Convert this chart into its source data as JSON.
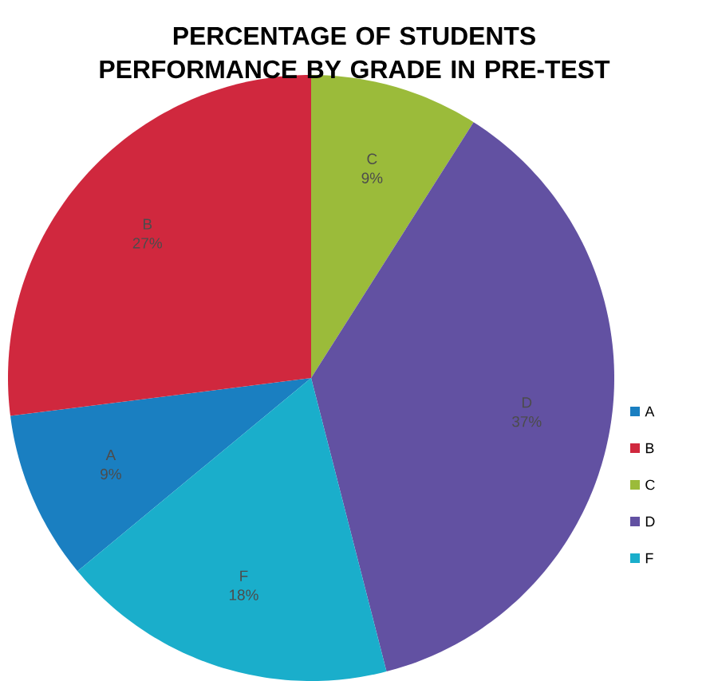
{
  "chart_data": {
    "type": "pie",
    "title": "PERCENTAGE OF STUDENTS PERFORMANCE  BY GRADE IN PRE-TEST",
    "categories": [
      "A",
      "B",
      "C",
      "D",
      "F"
    ],
    "values": [
      9,
      27,
      9,
      37,
      18
    ],
    "value_labels": [
      "9%",
      "27%",
      "9%",
      "37%",
      "18%"
    ],
    "colors": [
      "#1a7fc1",
      "#d0283e",
      "#9bbb3a",
      "#6251a2",
      "#1aaecb"
    ],
    "legend": "right"
  }
}
